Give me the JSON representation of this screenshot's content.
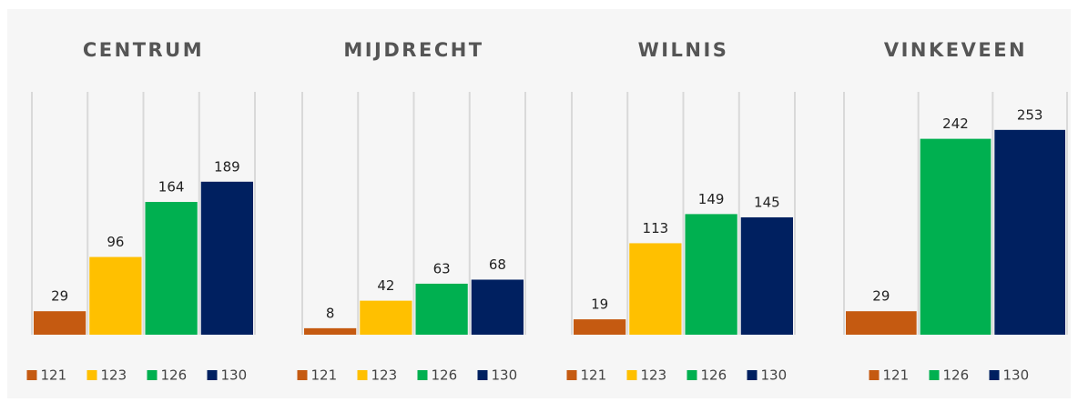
{
  "chart_data": [
    {
      "type": "bar",
      "title": "CENTRUM",
      "ylim": [
        0,
        300
      ],
      "series": [
        {
          "name": "121",
          "color": "#c55a11",
          "values": [
            29
          ]
        },
        {
          "name": "123",
          "color": "#ffc000",
          "values": [
            96
          ]
        },
        {
          "name": "126",
          "color": "#00b050",
          "values": [
            164
          ]
        },
        {
          "name": "130",
          "color": "#002060",
          "values": [
            189
          ]
        }
      ]
    },
    {
      "type": "bar",
      "title": "MIJDRECHT",
      "ylim": [
        0,
        300
      ],
      "series": [
        {
          "name": "121",
          "color": "#c55a11",
          "values": [
            8
          ]
        },
        {
          "name": "123",
          "color": "#ffc000",
          "values": [
            42
          ]
        },
        {
          "name": "126",
          "color": "#00b050",
          "values": [
            63
          ]
        },
        {
          "name": "130",
          "color": "#002060",
          "values": [
            68
          ]
        }
      ]
    },
    {
      "type": "bar",
      "title": "WILNIS",
      "ylim": [
        0,
        300
      ],
      "series": [
        {
          "name": "121",
          "color": "#c55a11",
          "values": [
            19
          ]
        },
        {
          "name": "123",
          "color": "#ffc000",
          "values": [
            113
          ]
        },
        {
          "name": "126",
          "color": "#00b050",
          "values": [
            149
          ]
        },
        {
          "name": "130",
          "color": "#002060",
          "values": [
            145
          ]
        }
      ]
    },
    {
      "type": "bar",
      "title": "VINKEVEEN",
      "ylim": [
        0,
        300
      ],
      "series": [
        {
          "name": "121",
          "color": "#c55a11",
          "values": [
            29
          ]
        },
        {
          "name": "126",
          "color": "#00b050",
          "values": [
            242
          ]
        },
        {
          "name": "130",
          "color": "#002060",
          "values": [
            253
          ]
        }
      ]
    }
  ]
}
